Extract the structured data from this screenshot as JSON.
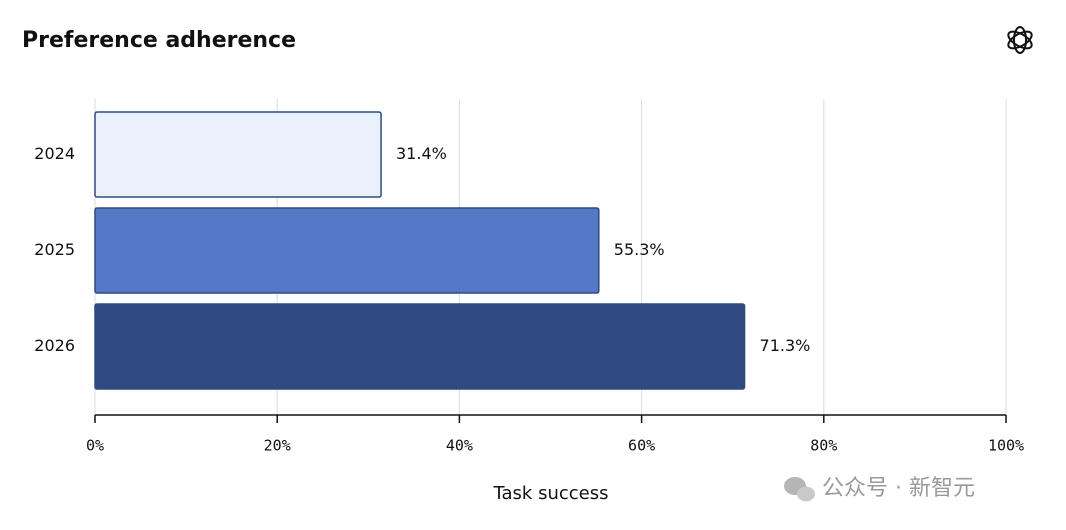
{
  "chart_data": {
    "type": "bar",
    "orientation": "horizontal",
    "title": "Preference adherence",
    "categories": [
      "2024",
      "2025",
      "2026"
    ],
    "values": [
      31.4,
      55.3,
      71.3
    ],
    "value_labels": [
      "31.4%",
      "55.3%",
      "71.3%"
    ],
    "colors": [
      "#e9f1fd",
      "#5579c6",
      "#2f4a80"
    ],
    "edge_color": "#2f4a7f",
    "x_label": "Task success",
    "xlim": [
      0,
      100
    ],
    "xticks": [
      {
        "value": 0,
        "label": "0%"
      },
      {
        "value": 20,
        "label": "20%"
      },
      {
        "value": 40,
        "label": "40%"
      },
      {
        "value": 60,
        "label": "60%"
      },
      {
        "value": 80,
        "label": "80%"
      },
      {
        "value": 100,
        "label": "100%"
      }
    ],
    "grid": true,
    "watermark": "公众号 · 新智元"
  }
}
